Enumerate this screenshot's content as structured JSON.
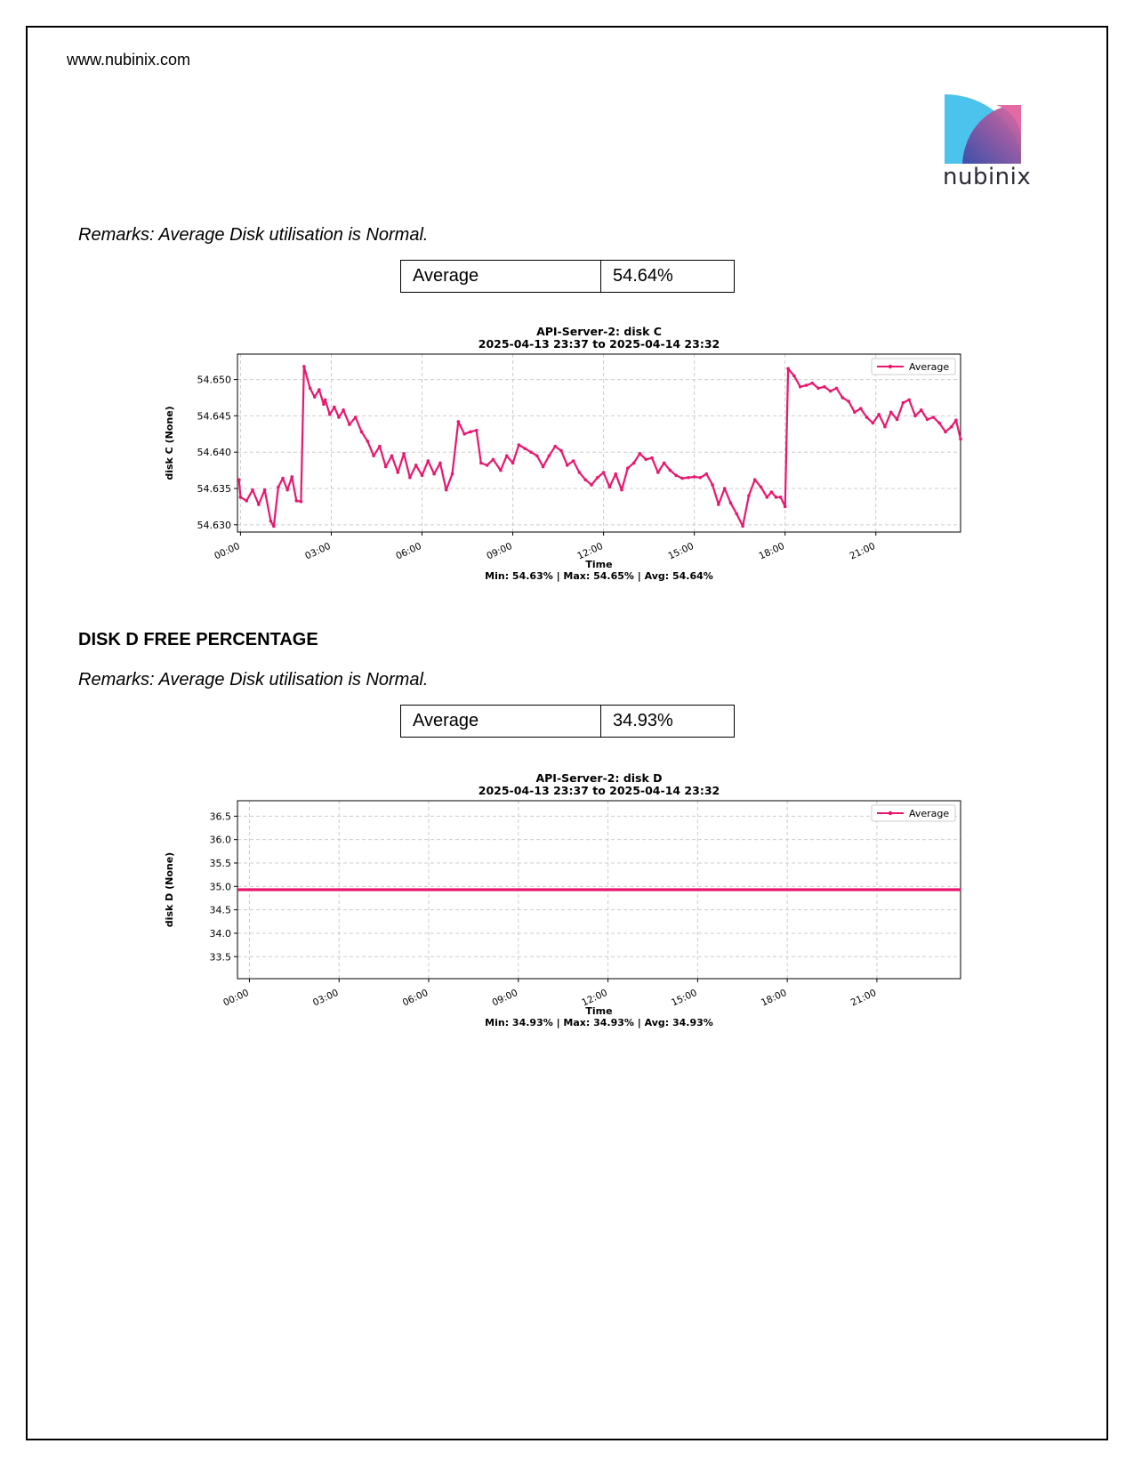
{
  "header": {
    "url": "www.nubinix.com",
    "logo_text": "nubinix"
  },
  "sections": [
    {
      "remarks": "Remarks: Average Disk utilisation is Normal.",
      "table": {
        "label": "Average",
        "value": "54.64%"
      }
    },
    {
      "heading": "DISK D FREE PERCENTAGE",
      "remarks": "Remarks: Average Disk utilisation is Normal.",
      "table": {
        "label": "Average",
        "value": "34.93%"
      }
    }
  ],
  "colors": {
    "series": "#E8176E",
    "grid": "#cccccc"
  },
  "chart_data": [
    {
      "type": "line",
      "title": "API-Server-2: disk C",
      "subtitle": "2025-04-13 23:37 to 2025-04-14 23:32",
      "xlabel": "Time",
      "ylabel": "disk C (None)",
      "x_ticks": [
        "00:00",
        "03:00",
        "06:00",
        "09:00",
        "12:00",
        "15:00",
        "18:00",
        "21:00"
      ],
      "x_range_hours": [
        -0.1,
        23.8
      ],
      "ylim": [
        54.629,
        54.6535
      ],
      "y_ticks": [
        "54.630",
        "54.635",
        "54.640",
        "54.645",
        "54.650"
      ],
      "legend": "top-right",
      "grid": true,
      "stats": "Min: 54.63% | Max: 54.65% | Avg: 54.64%",
      "series": [
        {
          "name": "Average",
          "x_hours": [
            -0.05,
            0.0,
            0.2,
            0.4,
            0.6,
            0.8,
            1.0,
            1.1,
            1.25,
            1.4,
            1.55,
            1.7,
            1.85,
            2.0,
            2.1,
            2.3,
            2.45,
            2.6,
            2.75,
            2.8,
            2.95,
            3.1,
            3.25,
            3.4,
            3.6,
            3.8,
            4.0,
            4.2,
            4.4,
            4.6,
            4.8,
            5.0,
            5.2,
            5.4,
            5.6,
            5.8,
            6.0,
            6.2,
            6.4,
            6.6,
            6.8,
            7.0,
            7.2,
            7.4,
            7.6,
            7.8,
            7.95,
            8.15,
            8.35,
            8.6,
            8.8,
            9.0,
            9.2,
            9.4,
            9.6,
            9.8,
            10.0,
            10.2,
            10.4,
            10.6,
            10.8,
            11.0,
            11.2,
            11.4,
            11.6,
            11.8,
            12.0,
            12.2,
            12.4,
            12.6,
            12.8,
            13.0,
            13.2,
            13.4,
            13.6,
            13.8,
            14.0,
            14.2,
            14.4,
            14.6,
            14.8,
            15.0,
            15.2,
            15.4,
            15.6,
            15.8,
            16.0,
            16.2,
            16.4,
            16.6,
            16.8,
            17.0,
            17.2,
            17.4,
            17.55,
            17.7,
            17.85,
            18.0,
            18.1,
            18.3,
            18.5,
            18.7,
            18.9,
            19.1,
            19.3,
            19.5,
            19.7,
            19.9,
            20.1,
            20.3,
            20.5,
            20.7,
            20.9,
            21.1,
            21.3,
            21.5,
            21.7,
            21.9,
            22.1,
            22.3,
            22.5,
            22.7,
            22.9,
            23.1,
            23.3,
            23.5,
            23.65,
            23.8
          ],
          "values": [
            54.6362,
            54.6338,
            54.6333,
            54.6348,
            54.6328,
            54.6348,
            54.6305,
            54.6298,
            54.6352,
            54.6364,
            54.6348,
            54.6366,
            54.6333,
            54.6332,
            54.6518,
            54.6488,
            54.6476,
            54.6486,
            54.6466,
            54.6472,
            54.6452,
            54.6462,
            54.6448,
            54.6458,
            54.6438,
            54.6448,
            54.6428,
            54.6415,
            54.6395,
            54.6408,
            54.638,
            54.6395,
            54.6372,
            54.6398,
            54.6365,
            54.6382,
            54.6368,
            54.6388,
            54.637,
            54.6385,
            54.6348,
            54.637,
            54.6442,
            54.6425,
            54.6428,
            54.643,
            54.6385,
            54.6382,
            54.639,
            54.6375,
            54.6395,
            54.6385,
            54.641,
            54.6405,
            54.64,
            54.6395,
            54.638,
            54.6395,
            54.6408,
            54.6402,
            54.6382,
            54.6388,
            54.6372,
            54.6362,
            54.6355,
            54.6365,
            54.6372,
            54.6352,
            54.637,
            54.6348,
            54.6378,
            54.6385,
            54.6398,
            54.639,
            54.6392,
            54.6372,
            54.6385,
            54.6375,
            54.6368,
            54.6364,
            54.6365,
            54.6366,
            54.6365,
            54.637,
            54.6355,
            54.6328,
            54.635,
            54.633,
            54.6315,
            54.6298,
            54.634,
            54.6362,
            54.6352,
            54.6338,
            54.6345,
            54.6338,
            54.6338,
            54.6325,
            54.6515,
            54.6505,
            54.649,
            54.6492,
            54.6495,
            54.6488,
            54.649,
            54.6484,
            54.6488,
            54.6475,
            54.647,
            54.6455,
            54.646,
            54.6448,
            54.644,
            54.6452,
            54.6435,
            54.6455,
            54.6445,
            54.6468,
            54.6472,
            54.645,
            54.6458,
            54.6445,
            54.6448,
            54.644,
            54.6428,
            54.6435,
            54.6444,
            54.6418
          ]
        }
      ]
    },
    {
      "type": "line",
      "title": "API-Server-2: disk D",
      "subtitle": "2025-04-13 23:37 to 2025-04-14 23:32",
      "xlabel": "Time",
      "ylabel": "disk D (None)",
      "x_ticks": [
        "00:00",
        "03:00",
        "06:00",
        "09:00",
        "12:00",
        "15:00",
        "18:00",
        "21:00"
      ],
      "x_range_hours": [
        -0.4,
        23.8
      ],
      "ylim": [
        33.03,
        36.83
      ],
      "y_ticks": [
        "33.5",
        "34.0",
        "34.5",
        "35.0",
        "35.5",
        "36.0",
        "36.5"
      ],
      "legend": "top-right",
      "grid": true,
      "stats": "Min: 34.93% | Max: 34.93% | Avg: 34.93%",
      "series": [
        {
          "name": "Average",
          "x_hours": [
            -0.4,
            23.8
          ],
          "values": [
            34.93,
            34.93
          ]
        }
      ]
    }
  ]
}
